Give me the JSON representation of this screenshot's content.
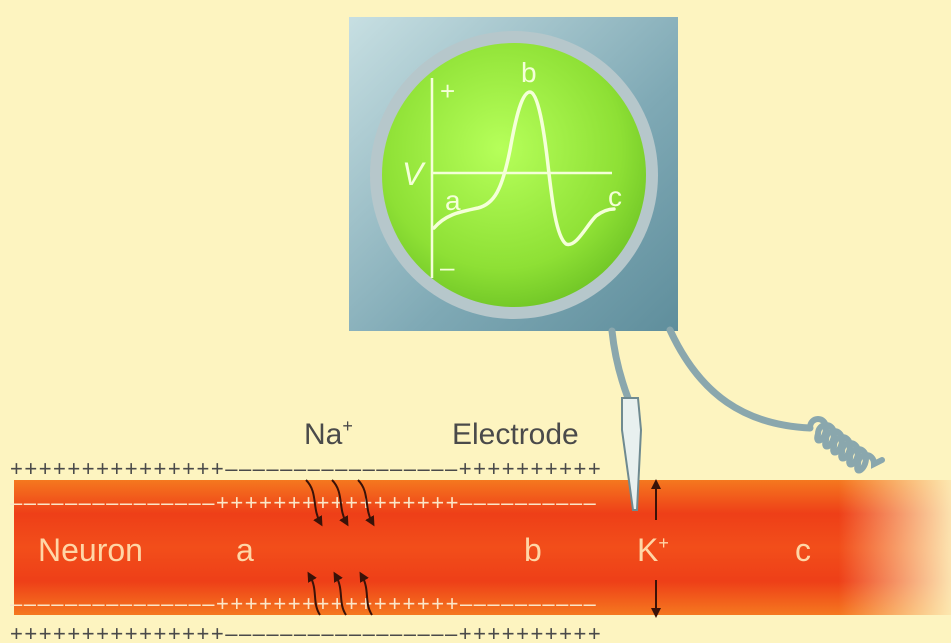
{
  "oscilloscope": {
    "plus_sign": "+",
    "minus_sign": "–",
    "axis_label": "V",
    "point_a": "a",
    "point_b": "b",
    "point_c": "c"
  },
  "labels": {
    "sodium_base": "Na",
    "sodium_sup": "+",
    "electrode": "Electrode",
    "neuron": "Neuron",
    "region_a": "a",
    "region_b": "b",
    "region_c": "c",
    "potassium_base": "K",
    "potassium_sup": "+"
  },
  "membrane": {
    "outer_top": "+++++++++++++++–––––––––––––––––++++++++++",
    "inner_top": "–––––––––––––––+++++++++++++++++––––––––––",
    "inner_bottom": "–––––––––––––––+++++++++++++++++––––––––––",
    "outer_bottom": "+++++++++++++++–––––––––––––––––++++++++++"
  },
  "colors": {
    "background": "#fdf4c0",
    "axon": "#f0461c",
    "screen": "#8fe33a",
    "trace": "#f4ffd8"
  }
}
